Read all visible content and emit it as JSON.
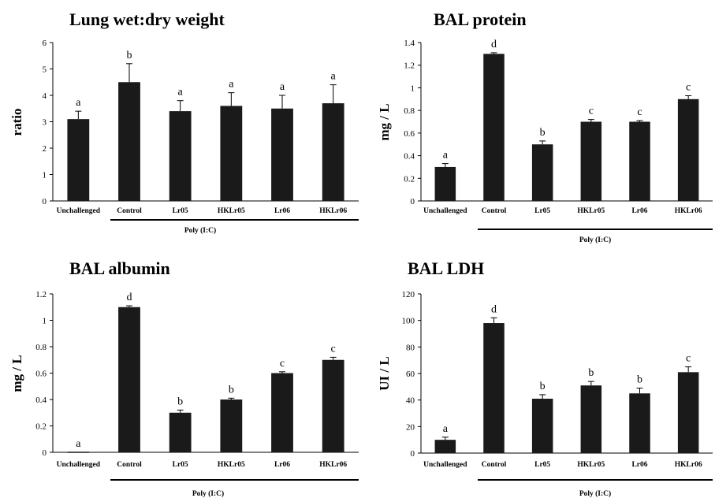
{
  "chart_data": [
    {
      "type": "bar",
      "title": "Lung wet:dry weight",
      "ylabel": "ratio",
      "group_label": "Poly (I:C)",
      "categories": [
        "Unchallenged",
        "Control",
        "Lr05",
        "HKLr05",
        "Lr06",
        "HKLr06"
      ],
      "values": [
        3.1,
        4.5,
        3.4,
        3.6,
        3.5,
        3.7
      ],
      "errors": [
        0.3,
        0.7,
        0.4,
        0.5,
        0.5,
        0.7
      ],
      "letters": [
        "a",
        "b",
        "a",
        "a",
        "a",
        "a"
      ],
      "ylim": [
        0,
        6
      ],
      "yticks": [
        "0",
        "1",
        "2",
        "3",
        "4",
        "5",
        "6"
      ],
      "bar_color": "#1a1a1a"
    },
    {
      "type": "bar",
      "title": "BAL protein",
      "ylabel": "mg / L",
      "group_label": "Poly (I:C)",
      "categories": [
        "Unchallenged",
        "Control",
        "Lr05",
        "HKLr05",
        "Lr06",
        "HKLr06"
      ],
      "values": [
        0.3,
        1.3,
        0.5,
        0.7,
        0.7,
        0.9
      ],
      "errors": [
        0.03,
        0.01,
        0.03,
        0.02,
        0.01,
        0.03
      ],
      "letters": [
        "a",
        "d",
        "b",
        "c",
        "c",
        "c"
      ],
      "ylim": [
        0,
        1.4
      ],
      "yticks": [
        "0",
        "0.2",
        "0.4",
        "0.6",
        "0.8",
        "1",
        "1.2",
        "1.4"
      ],
      "bar_color": "#1a1a1a"
    },
    {
      "type": "bar",
      "title": "BAL albumin",
      "ylabel": "mg / L",
      "group_label": "Poly (I:C)",
      "categories": [
        "Unchallenged",
        "Control",
        "Lr05",
        "HKLr05",
        "Lr06",
        "HKLr06"
      ],
      "values": [
        0,
        1.1,
        0.3,
        0.4,
        0.6,
        0.7
      ],
      "errors": [
        0,
        0.01,
        0.02,
        0.01,
        0.01,
        0.02
      ],
      "letters": [
        "a",
        "d",
        "b",
        "b",
        "c",
        "c"
      ],
      "ylim": [
        0,
        1.2
      ],
      "yticks": [
        "0",
        "0.2",
        "0.4",
        "0.6",
        "0.8",
        "1",
        "1.2"
      ],
      "bar_color": "#1a1a1a"
    },
    {
      "type": "bar",
      "title": "BAL LDH",
      "ylabel": "UI / L",
      "group_label": "Poly (I:C)",
      "categories": [
        "Unchallenged",
        "Control",
        "Lr05",
        "HKLr05",
        "Lr06",
        "HKLr06"
      ],
      "values": [
        10,
        98,
        41,
        51,
        45,
        61
      ],
      "errors": [
        2,
        4,
        3,
        3,
        4,
        4
      ],
      "letters": [
        "a",
        "d",
        "b",
        "b",
        "b",
        "c"
      ],
      "ylim": [
        0,
        120
      ],
      "yticks": [
        "0",
        "20",
        "40",
        "60",
        "80",
        "100",
        "120"
      ],
      "bar_color": "#1a1a1a"
    }
  ]
}
